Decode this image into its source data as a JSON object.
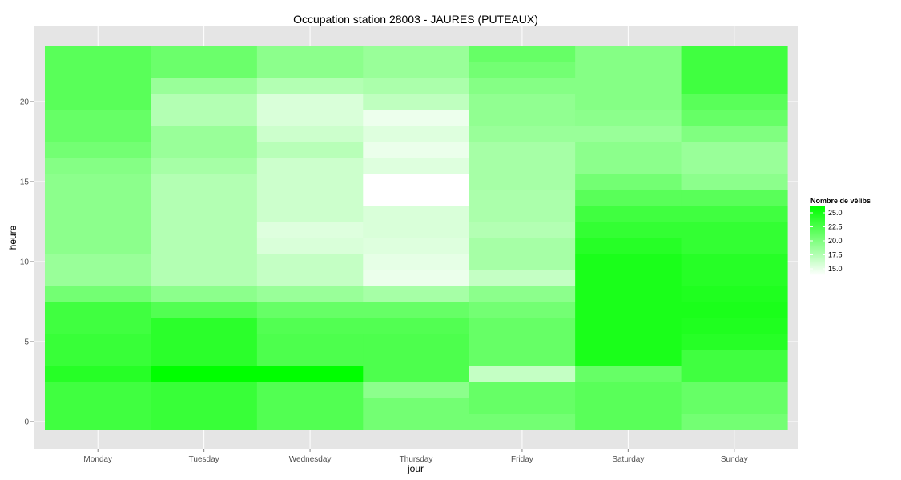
{
  "chart_data": {
    "type": "heatmap",
    "title": "Occupation station 28003 - JAURES (PUTEAUX)",
    "xlabel": "jour",
    "ylabel": "heure",
    "categories": [
      "Monday",
      "Tuesday",
      "Wednesday",
      "Thursday",
      "Friday",
      "Saturday",
      "Sunday"
    ],
    "y": [
      0,
      1,
      2,
      3,
      4,
      5,
      6,
      7,
      8,
      9,
      10,
      11,
      12,
      13,
      14,
      15,
      16,
      17,
      18,
      19,
      20,
      21,
      22,
      23
    ],
    "ylim": [
      -0.5,
      23.5
    ],
    "yticks": [
      0,
      5,
      10,
      15,
      20
    ],
    "values": [
      [
        22.5,
        22.8,
        21.8,
        20.5,
        20.5,
        21.5,
        20.5
      ],
      [
        22.5,
        22.8,
        21.8,
        20.5,
        21.0,
        21.5,
        21.0
      ],
      [
        22.5,
        22.8,
        21.8,
        19.5,
        21.0,
        21.5,
        21.0
      ],
      [
        23.5,
        26.8,
        26.6,
        22.0,
        17.3,
        21.0,
        22.5
      ],
      [
        22.8,
        23.3,
        22.0,
        22.0,
        21.0,
        24.0,
        22.5
      ],
      [
        22.8,
        23.3,
        22.0,
        22.0,
        21.0,
        24.0,
        23.5
      ],
      [
        22.5,
        23.3,
        21.8,
        21.8,
        21.0,
        24.0,
        23.8
      ],
      [
        22.5,
        21.8,
        21.0,
        21.0,
        20.5,
        24.0,
        24.0
      ],
      [
        20.5,
        19.5,
        19.0,
        18.5,
        19.5,
        24.0,
        23.8
      ],
      [
        19.0,
        18.0,
        17.3,
        15.8,
        17.3,
        24.0,
        23.5
      ],
      [
        19.0,
        18.0,
        17.3,
        16.0,
        18.5,
        24.0,
        23.5
      ],
      [
        19.5,
        18.0,
        16.5,
        16.3,
        18.5,
        23.5,
        23.0
      ],
      [
        19.5,
        18.0,
        16.3,
        16.5,
        18.0,
        23.0,
        23.0
      ],
      [
        19.5,
        18.0,
        17.0,
        16.5,
        18.3,
        22.5,
        22.5
      ],
      [
        19.5,
        18.0,
        17.0,
        15.0,
        18.3,
        21.5,
        21.5
      ],
      [
        19.5,
        18.0,
        17.0,
        15.0,
        18.5,
        20.5,
        19.5
      ],
      [
        19.8,
        18.5,
        17.0,
        16.3,
        18.5,
        19.5,
        19.0
      ],
      [
        20.5,
        19.0,
        17.8,
        15.8,
        18.5,
        19.5,
        19.0
      ],
      [
        21.0,
        19.0,
        17.0,
        16.3,
        19.0,
        19.0,
        20.0
      ],
      [
        21.0,
        18.0,
        16.5,
        15.7,
        19.3,
        19.5,
        21.0
      ],
      [
        21.5,
        18.0,
        16.5,
        17.5,
        19.3,
        19.8,
        21.5
      ],
      [
        21.5,
        19.0,
        18.0,
        18.3,
        19.8,
        19.8,
        22.5
      ],
      [
        21.5,
        20.8,
        19.5,
        19.0,
        20.5,
        19.8,
        22.5
      ],
      [
        21.5,
        20.8,
        19.5,
        19.0,
        21.0,
        19.8,
        22.5
      ]
    ],
    "color_scale": {
      "title": "Nombre de vélibs",
      "low": 15,
      "high": 25,
      "low_color": "#ffffff",
      "high_color": "#00ff00",
      "labels": [
        "25.0",
        "22.5",
        "20.0",
        "17.5",
        "15.0"
      ],
      "label_values": [
        25,
        22.5,
        20,
        17.5,
        15
      ]
    },
    "grid": true,
    "legend_position": "right"
  }
}
